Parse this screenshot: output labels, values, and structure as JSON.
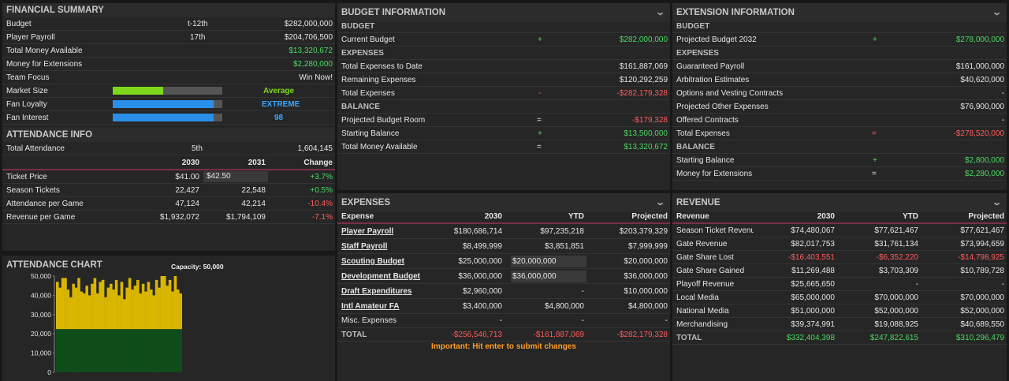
{
  "financial": {
    "title": "FINANCIAL SUMMARY",
    "budget": {
      "label": "Budget",
      "rank": "t-12th",
      "value": "$282,000,000"
    },
    "payroll": {
      "label": "Player Payroll",
      "rank": "17th",
      "value": "$204,706,500"
    },
    "tma": {
      "label": "Total Money Available",
      "value": "$13,320,672"
    },
    "mfe": {
      "label": "Money for Extensions",
      "value": "$2,280,000"
    },
    "focus": {
      "label": "Team Focus",
      "value": "Win Now!"
    },
    "market": {
      "label": "Market Size",
      "value": "Average",
      "level": 0.46
    },
    "loyalty": {
      "label": "Fan Loyalty",
      "value": "EXTREME",
      "level": 0.92
    },
    "interest": {
      "label": "Fan Interest",
      "value": "98",
      "level": 0.92
    }
  },
  "attendance": {
    "title": "ATTENDANCE INFO",
    "total": {
      "label": "Total Attendance",
      "rank": "5th",
      "value": "1,604,145"
    },
    "cols": [
      "2030",
      "2031",
      "Change"
    ],
    "rows": [
      {
        "label": "Ticket Price",
        "a": "$41.00",
        "b": "$42.50",
        "c": "+3.7%"
      },
      {
        "label": "Season Tickets",
        "a": "22,427",
        "b": "22,548",
        "c": "+0.5%"
      },
      {
        "label": "Attendance per Game",
        "a": "47,124",
        "b": "42,214",
        "c": "-10.4%"
      },
      {
        "label": "Revenue per Game",
        "a": "$1,932,072",
        "b": "$1,794,109",
        "c": "-7.1%"
      }
    ]
  },
  "chart": {
    "title": "ATTENDANCE CHART",
    "capacity": "Capacity: 50,000"
  },
  "chart_data": {
    "type": "bar",
    "ylim": [
      0,
      50000
    ],
    "yticks": [
      "50,000",
      "40,000",
      "30,000",
      "20,000",
      "10,000",
      "0"
    ],
    "season_tickets": 22427,
    "values": [
      47000,
      44000,
      49000,
      49000,
      43000,
      39000,
      46000,
      44000,
      49000,
      42000,
      41000,
      45000,
      40000,
      46000,
      49000,
      41000,
      47000,
      48000,
      39000,
      44000,
      46000,
      43000,
      48000,
      40000,
      47000,
      38000,
      44000,
      49000,
      43000,
      45000,
      48000,
      41000,
      46000,
      42000,
      47000,
      43000,
      40000,
      48000,
      44000,
      50000,
      50000,
      45000,
      48000,
      42000,
      50000,
      43000,
      41000
    ]
  },
  "budget": {
    "title": "BUDGET INFORMATION",
    "s1": "BUDGET",
    "current": {
      "label": "Current Budget",
      "op": "+",
      "value": "$282,000,000"
    },
    "s2": "EXPENSES",
    "ted": {
      "label": "Total Expenses to Date",
      "value": "$161,887,069"
    },
    "rem": {
      "label": "Remaining Expenses",
      "value": "$120,292,259"
    },
    "te": {
      "label": "Total Expenses",
      "op": "-",
      "value": "-$282,179,328"
    },
    "s3": "BALANCE",
    "pbr": {
      "label": "Projected Budget Room",
      "op": "=",
      "value": "-$179,328"
    },
    "sb": {
      "label": "Starting Balance",
      "op": "+",
      "value": "$13,500,000"
    },
    "tma": {
      "label": "Total Money Available",
      "op": "=",
      "value": "$13,320,672"
    }
  },
  "extension": {
    "title": "EXTENSION INFORMATION",
    "s1": "BUDGET",
    "pb": {
      "label": "Projected Budget 2032",
      "op": "+",
      "value": "$278,000,000"
    },
    "s2": "EXPENSES",
    "rows": [
      {
        "label": "Guaranteed Payroll",
        "value": "$161,000,000"
      },
      {
        "label": "Arbitration Estimates",
        "value": "$40,620,000"
      },
      {
        "label": "Options and Vesting Contracts",
        "value": "-"
      },
      {
        "label": "Projected Other Expenses",
        "value": "$76,900,000"
      },
      {
        "label": "Offered Contracts",
        "value": "-"
      }
    ],
    "te": {
      "label": "Total Expenses",
      "op": "=",
      "value": "-$278,520,000"
    },
    "s3": "BALANCE",
    "sb": {
      "label": "Starting Balance",
      "op": "+",
      "value": "$2,800,000"
    },
    "mfe": {
      "label": "Money for Extensions",
      "op": "=",
      "value": "$2,280,000"
    }
  },
  "expenses": {
    "title": "EXPENSES",
    "cols": [
      "Expense",
      "2030",
      "YTD",
      "Projected"
    ],
    "rows": [
      {
        "label": "Player Payroll",
        "a": "$180,686,714",
        "b": "$97,235,218",
        "c": "$203,379,329"
      },
      {
        "label": "Staff Payroll",
        "a": "$8,499,999",
        "b": "$3,851,851",
        "c": "$7,999,999"
      },
      {
        "label": "Scouting Budget",
        "a": "$25,000,000",
        "b": "$20,000,000",
        "c": "$20,000,000"
      },
      {
        "label": "Development Budget",
        "a": "$36,000,000",
        "b": "$36,000,000",
        "c": "$36,000,000"
      },
      {
        "label": "Draft Expenditures",
        "a": "$2,960,000",
        "b": "-",
        "c": "$10,000,000"
      },
      {
        "label": "Intl Amateur FA",
        "a": "$3,400,000",
        "b": "$4,800,000",
        "c": "$4,800,000"
      },
      {
        "label": "Misc. Expenses",
        "a": "-",
        "b": "-",
        "c": "-"
      }
    ],
    "total": {
      "label": "TOTAL",
      "a": "-$256,546,713",
      "b": "-$161,887,069",
      "c": "-$282,179,328"
    },
    "note": "Important: Hit enter to submit changes"
  },
  "revenue": {
    "title": "REVENUE",
    "cols": [
      "Revenue",
      "2030",
      "YTD",
      "Projected"
    ],
    "rows": [
      {
        "label": "Season Ticket Revenu",
        "a": "$74,480,067",
        "b": "$77,621,467",
        "c": "$77,621,467"
      },
      {
        "label": "Gate Revenue",
        "a": "$82,017,753",
        "b": "$31,761,134",
        "c": "$73,994,659"
      },
      {
        "label": "Gate Share Lost",
        "a": "-$16,403,551",
        "b": "-$6,352,220",
        "c": "-$14,798,925"
      },
      {
        "label": "Gate Share Gained",
        "a": "$11,269,488",
        "b": "$3,703,309",
        "c": "$10,789,728"
      },
      {
        "label": "Playoff Revenue",
        "a": "$25,665,650",
        "b": "-",
        "c": "-"
      },
      {
        "label": "Local Media",
        "a": "$65,000,000",
        "b": "$70,000,000",
        "c": "$70,000,000"
      },
      {
        "label": "National Media",
        "a": "$51,000,000",
        "b": "$52,000,000",
        "c": "$52,000,000"
      },
      {
        "label": "Merchandising",
        "a": "$39,374,991",
        "b": "$19,088,925",
        "c": "$40,689,550"
      }
    ],
    "total": {
      "label": "TOTAL",
      "a": "$332,404,398",
      "b": "$247,822,615",
      "c": "$310,296,479"
    }
  },
  "colors": {
    "green": "#4cd964",
    "red": "#ff5b5b",
    "blue": "#3aa6ff",
    "lime": "#7dd81c",
    "orange": "#ff9d2a",
    "gold": "#d9b600",
    "darkgreen": "#0f4d1a",
    "accent": "#7a2f45"
  }
}
